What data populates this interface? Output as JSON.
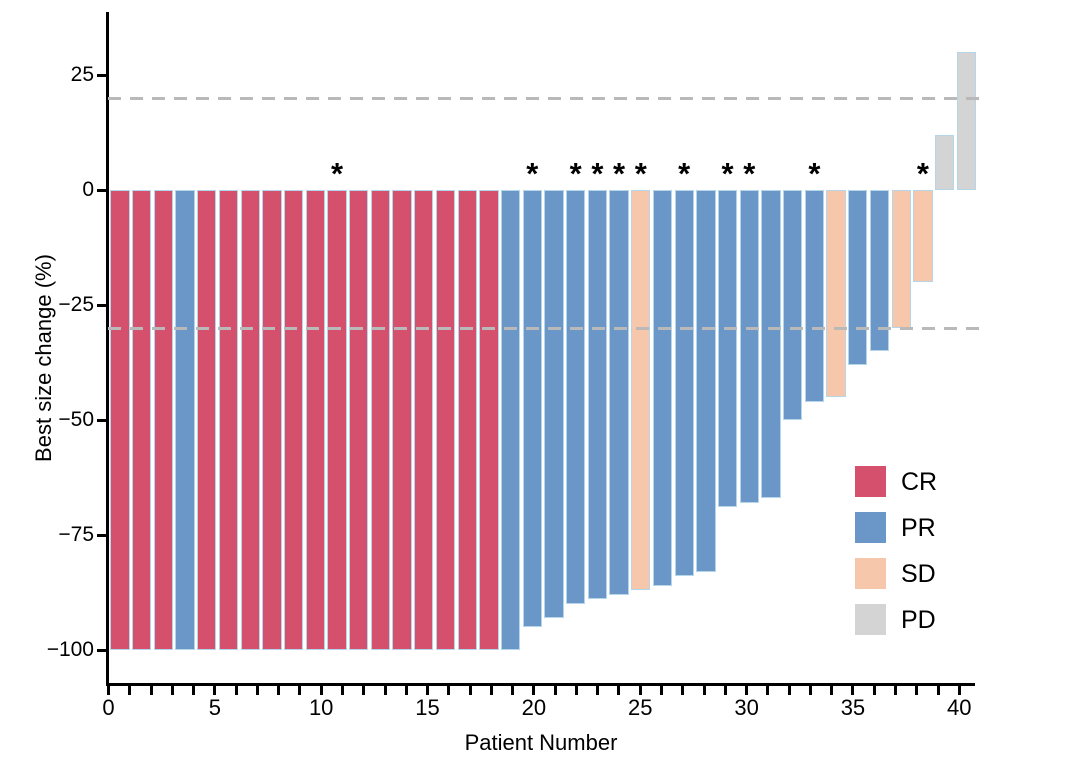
{
  "figure_title": "",
  "chart_data": {
    "type": "bar",
    "subtype": "waterfall",
    "title": "",
    "xlabel": "Patient Number",
    "ylabel": "Best size change (%)",
    "ylim": [
      -107,
      38
    ],
    "xlim": [
      0,
      41
    ],
    "grid": false,
    "legend_position": "right-middle",
    "yticks": [
      {
        "value": 25,
        "label": "25"
      },
      {
        "value": 0,
        "label": "0"
      },
      {
        "value": -25,
        "label": "−25"
      },
      {
        "value": -50,
        "label": "−50"
      },
      {
        "value": -75,
        "label": "−75"
      },
      {
        "value": -100,
        "label": "−100"
      }
    ],
    "xticks_minor_every": 1,
    "xticks": [
      {
        "value": 0,
        "label": "0"
      },
      {
        "value": 5,
        "label": "5"
      },
      {
        "value": 10,
        "label": "10"
      },
      {
        "value": 15,
        "label": "15"
      },
      {
        "value": 20,
        "label": "20"
      },
      {
        "value": 25,
        "label": "25"
      },
      {
        "value": 30,
        "label": "30"
      },
      {
        "value": 35,
        "label": "35"
      },
      {
        "value": 40,
        "label": "40"
      }
    ],
    "reference_lines": [
      {
        "y": 20,
        "style": "dashed",
        "color": "#b9b9b9"
      },
      {
        "y": -30,
        "style": "dashed",
        "color": "#b9b9b9"
      }
    ],
    "colors": {
      "CR": "#d5506c",
      "PR": "#6a97c8",
      "SD": "#f7c7ab",
      "PD": "#d4d4d4"
    },
    "bar_border_color": "#b5d5e8",
    "annotation_glyph": "*",
    "legend": [
      {
        "label": "CR",
        "color": "#d5506c"
      },
      {
        "label": "PR",
        "color": "#6a97c8"
      },
      {
        "label": "SD",
        "color": "#f7c7ab"
      },
      {
        "label": "PD",
        "color": "#d4d4d4"
      }
    ],
    "bars": [
      {
        "patient": 1,
        "value": -100,
        "response": "CR",
        "asterisk": false
      },
      {
        "patient": 2,
        "value": -100,
        "response": "CR",
        "asterisk": false
      },
      {
        "patient": 3,
        "value": -100,
        "response": "CR",
        "asterisk": false
      },
      {
        "patient": 4,
        "value": -100,
        "response": "PR",
        "asterisk": false
      },
      {
        "patient": 5,
        "value": -100,
        "response": "CR",
        "asterisk": false
      },
      {
        "patient": 6,
        "value": -100,
        "response": "CR",
        "asterisk": false
      },
      {
        "patient": 7,
        "value": -100,
        "response": "CR",
        "asterisk": false
      },
      {
        "patient": 8,
        "value": -100,
        "response": "CR",
        "asterisk": false
      },
      {
        "patient": 9,
        "value": -100,
        "response": "CR",
        "asterisk": false
      },
      {
        "patient": 10,
        "value": -100,
        "response": "CR",
        "asterisk": false
      },
      {
        "patient": 11,
        "value": -100,
        "response": "CR",
        "asterisk": true
      },
      {
        "patient": 12,
        "value": -100,
        "response": "CR",
        "asterisk": false
      },
      {
        "patient": 13,
        "value": -100,
        "response": "CR",
        "asterisk": false
      },
      {
        "patient": 14,
        "value": -100,
        "response": "CR",
        "asterisk": false
      },
      {
        "patient": 15,
        "value": -100,
        "response": "CR",
        "asterisk": false
      },
      {
        "patient": 16,
        "value": -100,
        "response": "CR",
        "asterisk": false
      },
      {
        "patient": 17,
        "value": -100,
        "response": "CR",
        "asterisk": false
      },
      {
        "patient": 18,
        "value": -100,
        "response": "CR",
        "asterisk": false
      },
      {
        "patient": 19,
        "value": -100,
        "response": "PR",
        "asterisk": false
      },
      {
        "patient": 20,
        "value": -95,
        "response": "PR",
        "asterisk": true
      },
      {
        "patient": 21,
        "value": -93,
        "response": "PR",
        "asterisk": false
      },
      {
        "patient": 22,
        "value": -90,
        "response": "PR",
        "asterisk": true
      },
      {
        "patient": 23,
        "value": -89,
        "response": "PR",
        "asterisk": true
      },
      {
        "patient": 24,
        "value": -88,
        "response": "PR",
        "asterisk": true
      },
      {
        "patient": 25,
        "value": -87,
        "response": "SD",
        "asterisk": true
      },
      {
        "patient": 26,
        "value": -86,
        "response": "PR",
        "asterisk": false
      },
      {
        "patient": 27,
        "value": -84,
        "response": "PR",
        "asterisk": true
      },
      {
        "patient": 28,
        "value": -83,
        "response": "PR",
        "asterisk": false
      },
      {
        "patient": 29,
        "value": -69,
        "response": "PR",
        "asterisk": true
      },
      {
        "patient": 30,
        "value": -68,
        "response": "PR",
        "asterisk": true
      },
      {
        "patient": 31,
        "value": -67,
        "response": "PR",
        "asterisk": false
      },
      {
        "patient": 32,
        "value": -50,
        "response": "PR",
        "asterisk": false
      },
      {
        "patient": 33,
        "value": -46,
        "response": "PR",
        "asterisk": true
      },
      {
        "patient": 34,
        "value": -45,
        "response": "SD",
        "asterisk": false
      },
      {
        "patient": 35,
        "value": -38,
        "response": "PR",
        "asterisk": false
      },
      {
        "patient": 36,
        "value": -35,
        "response": "PR",
        "asterisk": false
      },
      {
        "patient": 37,
        "value": -30,
        "response": "SD",
        "asterisk": false
      },
      {
        "patient": 38,
        "value": -20,
        "response": "SD",
        "asterisk": true
      },
      {
        "patient": 39,
        "value": 12,
        "response": "PD",
        "asterisk": false
      },
      {
        "patient": 40,
        "value": 30,
        "response": "PD",
        "asterisk": false
      }
    ]
  }
}
